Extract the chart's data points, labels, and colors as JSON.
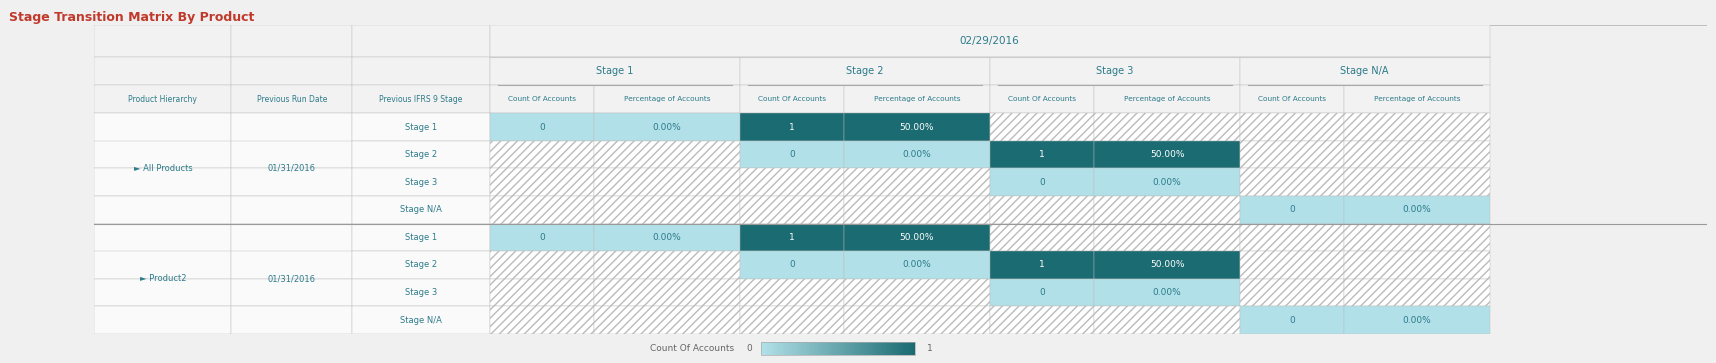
{
  "title": "Stage Transition Matrix By Product",
  "title_color": "#c0392b",
  "date_header": "02/29/2016",
  "col_groups": [
    "Stage 1",
    "Stage 2",
    "Stage 3",
    "Stage N/A"
  ],
  "col_headers": [
    "Count Of Accounts",
    "Percentage of Accounts"
  ],
  "row_headers": [
    "Product Hierarchy",
    "Previous Run Date",
    "Previous IFRS 9 Stage"
  ],
  "products": [
    {
      "name": "All Products",
      "run_date": "01/31/2016",
      "stages": [
        "Stage 1",
        "Stage 2",
        "Stage 3",
        "Stage N/A"
      ],
      "data": [
        [
          0,
          "0.00%",
          1,
          "50.00%",
          null,
          null,
          null,
          null
        ],
        [
          null,
          null,
          0,
          "0.00%",
          1,
          "50.00%",
          null,
          null
        ],
        [
          null,
          null,
          null,
          null,
          0,
          "0.00%",
          null,
          null
        ],
        [
          null,
          null,
          null,
          null,
          null,
          null,
          0,
          "0.00%"
        ]
      ]
    },
    {
      "name": "Product2",
      "run_date": "01/31/2016",
      "stages": [
        "Stage 1",
        "Stage 2",
        "Stage 3",
        "Stage N/A"
      ],
      "data": [
        [
          0,
          "0.00%",
          1,
          "50.00%",
          null,
          null,
          null,
          null
        ],
        [
          null,
          null,
          0,
          "0.00%",
          1,
          "50.00%",
          null,
          null
        ],
        [
          null,
          null,
          null,
          null,
          0,
          "0.00%",
          null,
          null
        ],
        [
          null,
          null,
          null,
          null,
          null,
          null,
          0,
          "0.00%"
        ]
      ]
    }
  ],
  "color_dark": "#1a6b72",
  "color_light": "#b2e0e8",
  "color_hatch_fg": "#cccccc",
  "color_white": "#ffffff",
  "color_header_bg": "#f2f2f2",
  "color_subheader_bg": "#fafafa",
  "bg_outer": "#f0f0f0",
  "legend_label": "Count Of Accounts",
  "legend_min": "0",
  "legend_max": "1",
  "arrow_char": "►",
  "text_col": "#2c7b8a"
}
